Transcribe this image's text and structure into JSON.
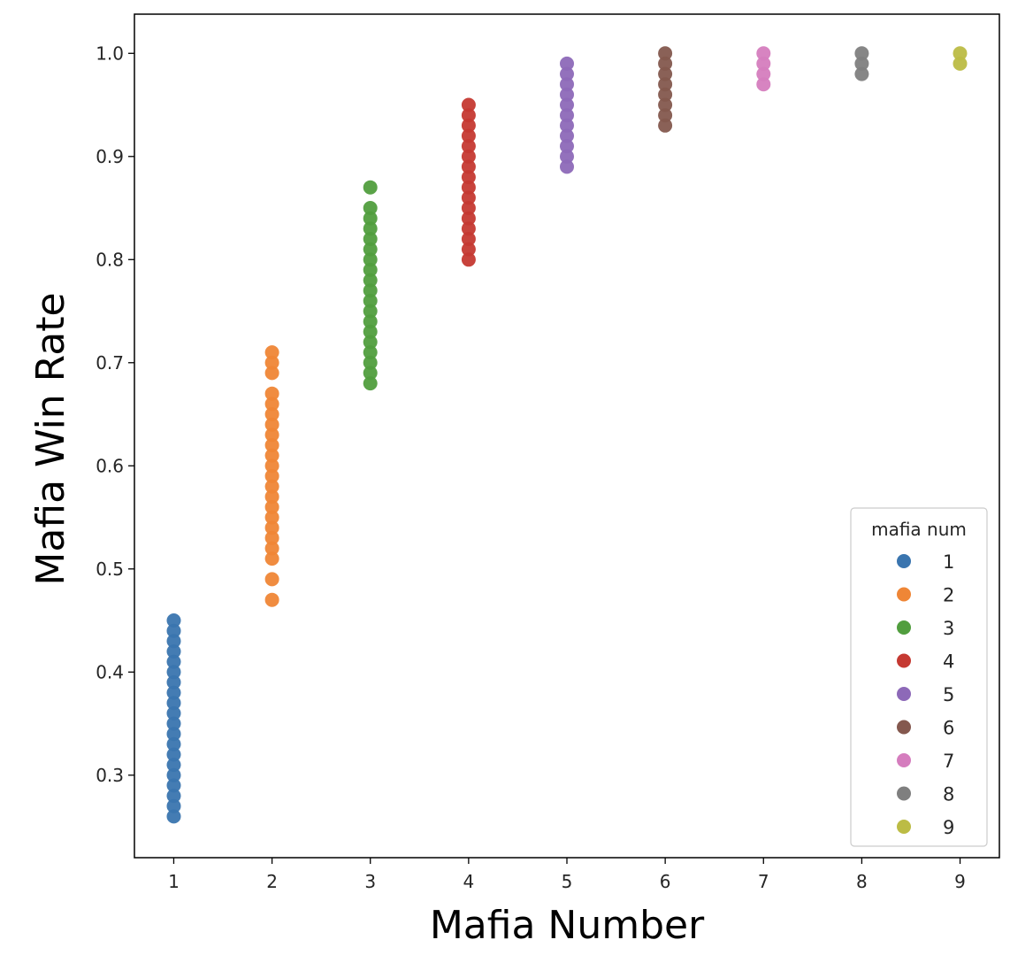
{
  "chart_data": {
    "type": "scatter",
    "title": "",
    "xlabel": "Mafia Number",
    "ylabel": "Mafia Win Rate",
    "xlim": [
      0.6,
      9.4
    ],
    "ylim": [
      0.22,
      1.038
    ],
    "x_ticks": [
      "1",
      "2",
      "3",
      "4",
      "5",
      "6",
      "7",
      "8",
      "9"
    ],
    "y_ticks": [
      "0.3",
      "0.4",
      "0.5",
      "0.6",
      "0.7",
      "0.8",
      "0.9",
      "1.0"
    ],
    "grid": false,
    "legend": {
      "title": "mafia num",
      "placement": "lower-right"
    },
    "series": [
      {
        "name": "1",
        "color": "#3a75af",
        "x": 1,
        "y": [
          0.26,
          0.27,
          0.28,
          0.29,
          0.3,
          0.31,
          0.32,
          0.33,
          0.34,
          0.35,
          0.36,
          0.37,
          0.38,
          0.39,
          0.4,
          0.41,
          0.42,
          0.43,
          0.44,
          0.45
        ]
      },
      {
        "name": "2",
        "color": "#ef8636",
        "x": 2,
        "y": [
          0.47,
          0.49,
          0.51,
          0.52,
          0.53,
          0.54,
          0.55,
          0.56,
          0.57,
          0.58,
          0.59,
          0.6,
          0.61,
          0.62,
          0.63,
          0.64,
          0.65,
          0.66,
          0.67,
          0.69,
          0.7,
          0.71
        ]
      },
      {
        "name": "3",
        "color": "#519e3e",
        "x": 3,
        "y": [
          0.68,
          0.69,
          0.7,
          0.71,
          0.72,
          0.73,
          0.74,
          0.75,
          0.76,
          0.77,
          0.78,
          0.79,
          0.8,
          0.81,
          0.82,
          0.83,
          0.84,
          0.85,
          0.87
        ]
      },
      {
        "name": "4",
        "color": "#c53932",
        "x": 4,
        "y": [
          0.8,
          0.81,
          0.82,
          0.83,
          0.84,
          0.85,
          0.86,
          0.87,
          0.88,
          0.89,
          0.9,
          0.91,
          0.92,
          0.93,
          0.94,
          0.95
        ]
      },
      {
        "name": "5",
        "color": "#8d69b8",
        "x": 5,
        "y": [
          0.89,
          0.9,
          0.91,
          0.92,
          0.93,
          0.94,
          0.95,
          0.96,
          0.97,
          0.98,
          0.99
        ]
      },
      {
        "name": "6",
        "color": "#84584e",
        "x": 6,
        "y": [
          0.93,
          0.94,
          0.95,
          0.96,
          0.97,
          0.98,
          0.99,
          1.0
        ]
      },
      {
        "name": "7",
        "color": "#d57dbe",
        "x": 7,
        "y": [
          0.97,
          0.98,
          0.99,
          1.0
        ]
      },
      {
        "name": "8",
        "color": "#7f7f7f",
        "x": 8,
        "y": [
          0.98,
          0.99,
          1.0
        ]
      },
      {
        "name": "9",
        "color": "#bcbc45",
        "x": 9,
        "y": [
          0.99,
          1.0
        ]
      }
    ]
  }
}
